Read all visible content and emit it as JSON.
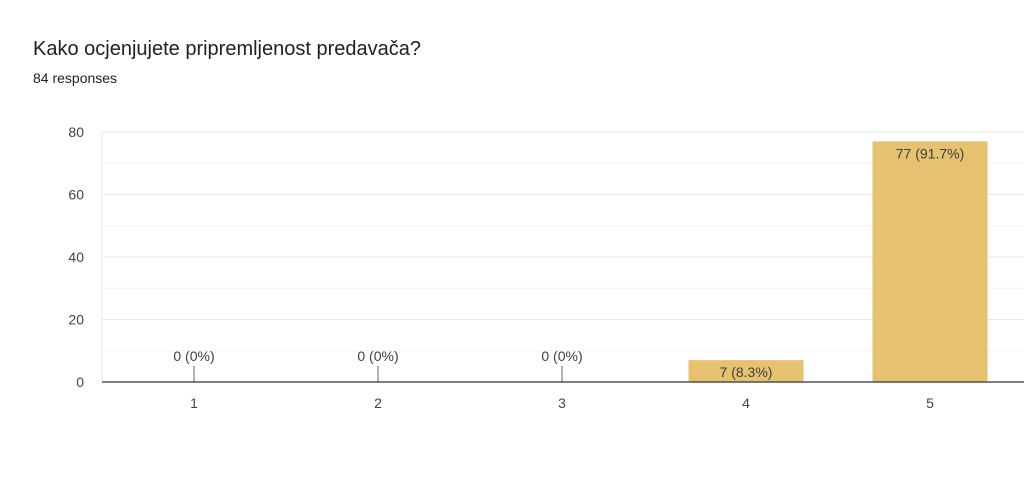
{
  "question": {
    "title": "Kako ocjenjujete pripremljenost predavača?",
    "responses": "84 responses"
  },
  "colors": {
    "bar": "#e6c16f",
    "grid_major": "#e8e8e8",
    "grid_minor": "#f3f3f3",
    "axis": "#333333"
  },
  "chart_data": {
    "type": "bar",
    "categories": [
      "1",
      "2",
      "3",
      "4",
      "5"
    ],
    "values": [
      0,
      0,
      0,
      7,
      77
    ],
    "data_labels": [
      "0 (0%)",
      "0 (0%)",
      "0 (0%)",
      "7 (8.3%)",
      "77 (91.7%)"
    ],
    "yticks": [
      0,
      20,
      40,
      60,
      80
    ],
    "ylim": [
      0,
      80
    ],
    "grid": true,
    "legend": "none"
  }
}
